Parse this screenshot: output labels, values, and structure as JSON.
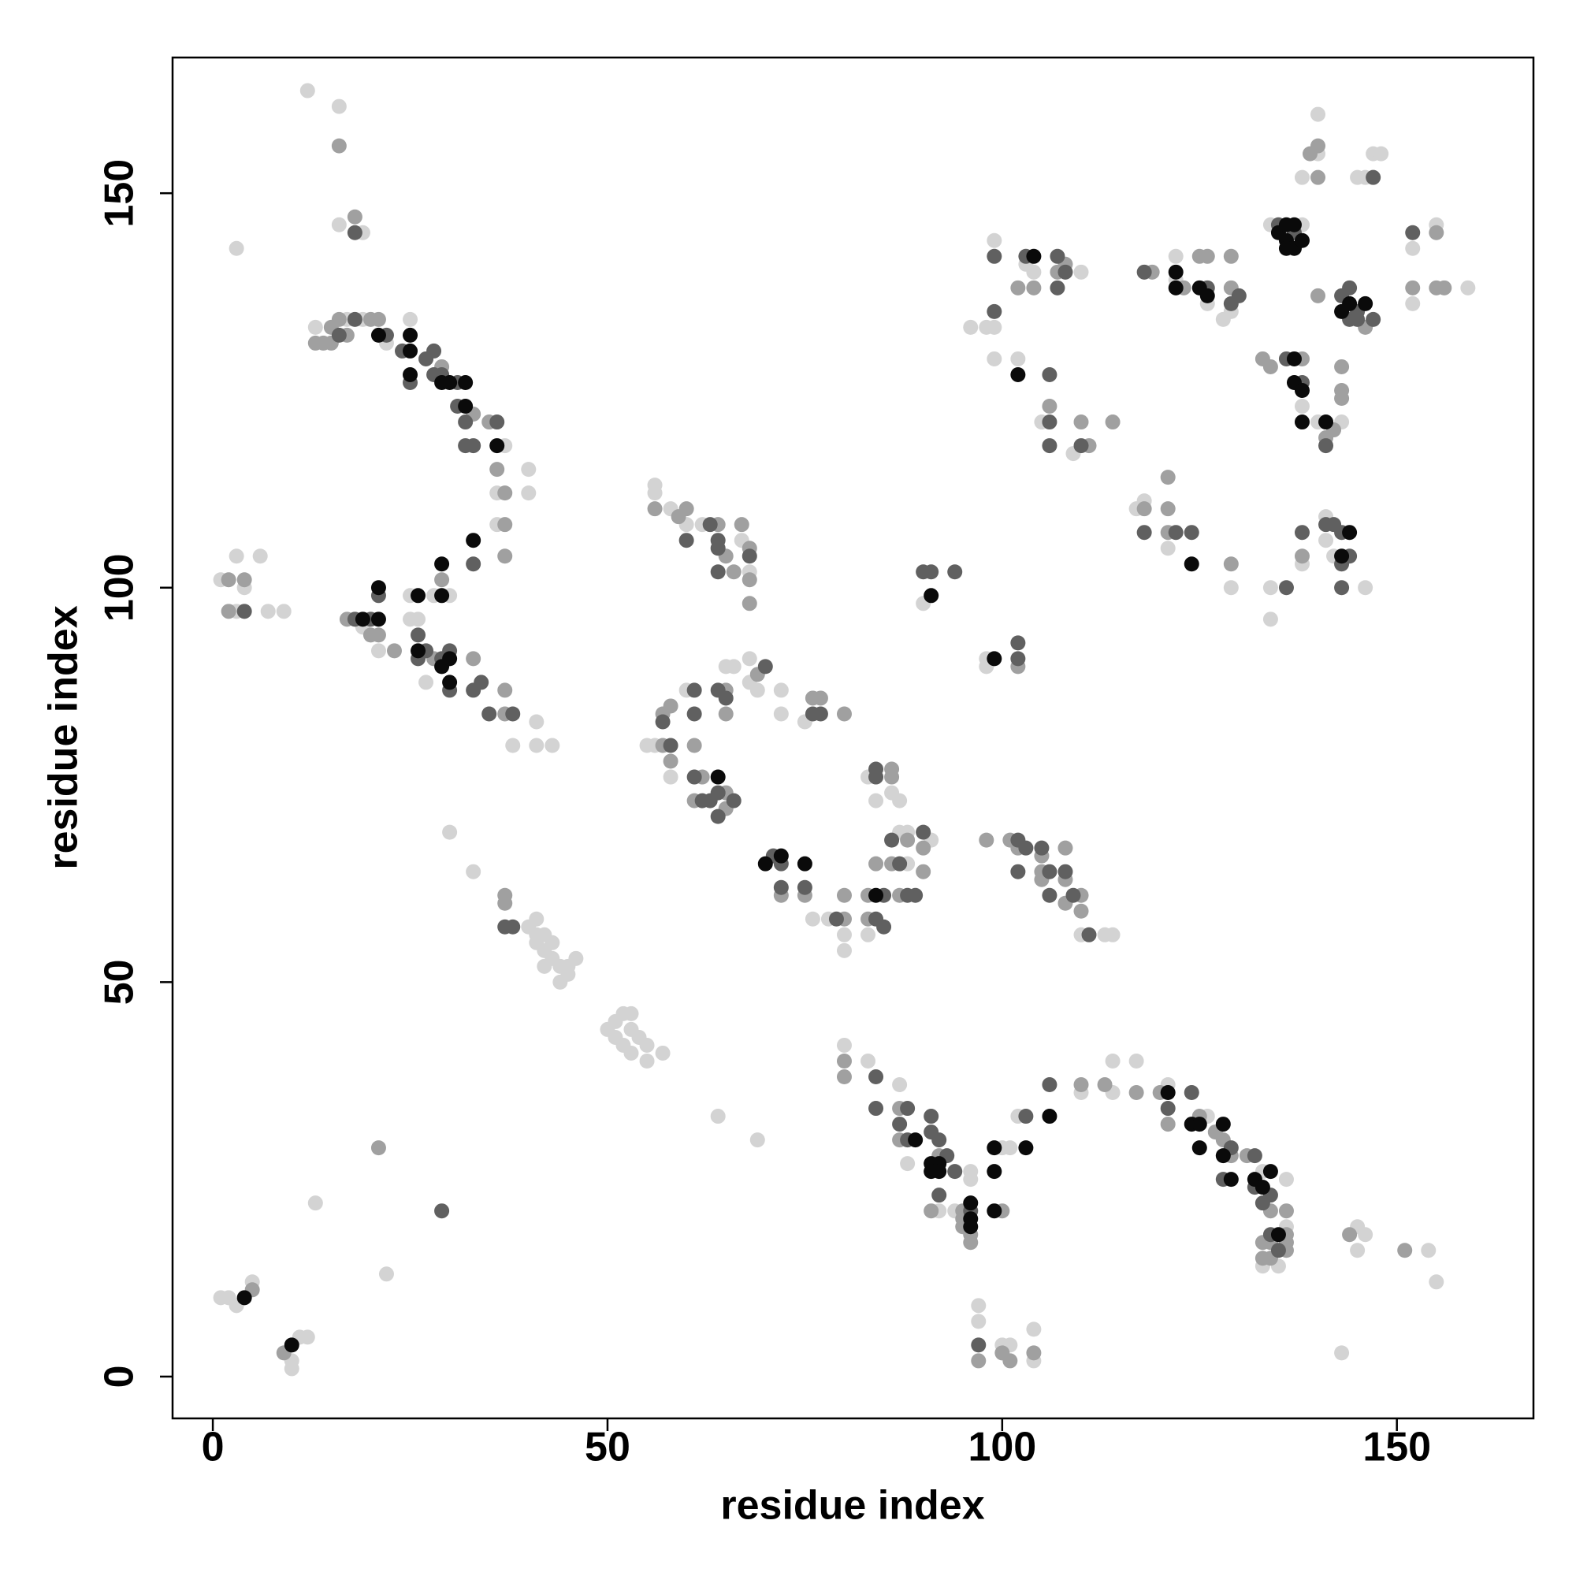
{
  "chart_data": {
    "type": "scatter",
    "xlabel": "residue index",
    "ylabel": "residue index",
    "xlim": [
      -5.1,
      167.3
    ],
    "ylim": [
      -5.3,
      167.2
    ],
    "xticks": [
      0,
      50,
      100,
      150
    ],
    "yticks": [
      0,
      50,
      100,
      150
    ],
    "grid": false,
    "series": [
      {
        "color": "#d3d3d3",
        "x": [
          1,
          2,
          3,
          5,
          10,
          11,
          12,
          10,
          13,
          22,
          3,
          12,
          16,
          16,
          19,
          1,
          3,
          3,
          4,
          6,
          7,
          9,
          13,
          17,
          19,
          22,
          25,
          37,
          36,
          36,
          40,
          40,
          30,
          28,
          25,
          19,
          21,
          25,
          26,
          27,
          38,
          41,
          41,
          43,
          30,
          33,
          40,
          41,
          41,
          41,
          42,
          42,
          43,
          44,
          44,
          45,
          46,
          45,
          43,
          42,
          50,
          51,
          51,
          52,
          53,
          53,
          52,
          53,
          54,
          55,
          55,
          57,
          64,
          69,
          56,
          56,
          58,
          60,
          62,
          67,
          68,
          65,
          66,
          60,
          55,
          56,
          58,
          68,
          68,
          69,
          72,
          75,
          72,
          76,
          78,
          80,
          80,
          83,
          83,
          86,
          84,
          87,
          87,
          88,
          88,
          91,
          90,
          98,
          98,
          110,
          113,
          114,
          80,
          83,
          87,
          88,
          92,
          94,
          96,
          96,
          100,
          101,
          102,
          110,
          114,
          114,
          117,
          121,
          126,
          133,
          133,
          135,
          136,
          136,
          145,
          145,
          146,
          154,
          155,
          97,
          97,
          100,
          101,
          104,
          104,
          143,
          99,
          98,
          99,
          96,
          99,
          102,
          103,
          104,
          110,
          105,
          109,
          122,
          122,
          126,
          128,
          129,
          117,
          118,
          121,
          129,
          134,
          138,
          138,
          140,
          140,
          145,
          146,
          147,
          148,
          152,
          152,
          155,
          159,
          138,
          140,
          143,
          134,
          134,
          138,
          141,
          141,
          142,
          146
        ],
        "y": [
          10,
          10,
          9,
          12,
          1,
          5,
          5,
          2,
          22,
          13,
          143,
          163,
          161,
          146,
          145,
          101,
          104,
          97,
          100,
          104,
          97,
          97,
          133,
          134,
          134,
          131,
          134,
          118,
          112,
          108,
          115,
          112,
          99,
          99,
          99,
          95,
          92,
          96,
          96,
          88,
          80,
          83,
          80,
          80,
          69,
          64,
          57,
          58,
          56,
          55,
          56,
          54,
          53,
          52,
          50,
          52,
          53,
          51,
          55,
          52,
          44,
          45,
          43,
          46,
          46,
          44,
          42,
          41,
          43,
          42,
          40,
          41,
          33,
          30,
          113,
          112,
          110,
          108,
          108,
          106,
          102,
          90,
          90,
          87,
          80,
          80,
          76,
          91,
          88,
          87,
          87,
          83,
          84,
          58,
          58,
          56,
          54,
          56,
          76,
          74,
          73,
          73,
          69,
          69,
          65,
          68,
          98,
          91,
          90,
          56,
          56,
          56,
          42,
          40,
          37,
          27,
          21,
          21,
          26,
          25,
          29,
          29,
          33,
          36,
          36,
          40,
          40,
          37,
          33,
          26,
          14,
          14,
          19,
          25,
          19,
          16,
          18,
          16,
          12,
          9,
          7,
          4,
          4,
          6,
          2,
          3,
          144,
          133,
          133,
          133,
          129,
          129,
          141,
          140,
          140,
          121,
          117,
          142,
          139,
          136,
          134,
          135,
          110,
          111,
          105,
          100,
          146,
          146,
          152,
          160,
          155,
          152,
          152,
          155,
          155,
          143,
          136,
          146,
          138,
          123,
          121,
          121,
          100,
          96,
          103,
          109,
          106,
          104,
          100
        ]
      },
      {
        "color": "#a0a0a0",
        "x": [
          5,
          9,
          21,
          16,
          18,
          2,
          2,
          4,
          13,
          14,
          15,
          15,
          16,
          17,
          20,
          21,
          29,
          33,
          35,
          36,
          37,
          37,
          37,
          29,
          17,
          20,
          21,
          23,
          28,
          33,
          37,
          37,
          37,
          37,
          56,
          59,
          60,
          64,
          65,
          66,
          67,
          68,
          68,
          68,
          69,
          65,
          65,
          58,
          57,
          57,
          58,
          61,
          62,
          61,
          65,
          65,
          76,
          77,
          80,
          72,
          75,
          80,
          80,
          83,
          83,
          86,
          86,
          88,
          86,
          87,
          84,
          90,
          90,
          102,
          98,
          101,
          102,
          105,
          105,
          105,
          108,
          108,
          108,
          110,
          110,
          80,
          80,
          87,
          87,
          92,
          91,
          95,
          95,
          95,
          96,
          96,
          100,
          110,
          113,
          117,
          120,
          121,
          125,
          127,
          128,
          129,
          131,
          134,
          134,
          133,
          133,
          134,
          136,
          136,
          136,
          136,
          144,
          151,
          97,
          100,
          101,
          104,
          102,
          104,
          108,
          107,
          106,
          110,
          111,
          114,
          119,
          123,
          125,
          126,
          129,
          129,
          118,
          121,
          121,
          121,
          129,
          139,
          140,
          140,
          152,
          155,
          155,
          156,
          140,
          146,
          133,
          134,
          138,
          141,
          142,
          143,
          143,
          143,
          138
        ],
        "y": [
          11,
          3,
          29,
          156,
          147,
          101,
          97,
          101,
          131,
          131,
          131,
          133,
          134,
          132,
          134,
          134,
          128,
          122,
          121,
          115,
          112,
          108,
          104,
          101,
          96,
          94,
          94,
          92,
          91,
          91,
          87,
          84,
          61,
          60,
          110,
          109,
          110,
          108,
          104,
          102,
          108,
          105,
          101,
          98,
          89,
          87,
          84,
          85,
          84,
          80,
          78,
          80,
          76,
          73,
          74,
          72,
          86,
          86,
          84,
          61,
          61,
          61,
          58,
          58,
          61,
          77,
          76,
          68,
          65,
          61,
          65,
          67,
          64,
          90,
          68,
          68,
          67,
          66,
          64,
          63,
          63,
          67,
          60,
          61,
          59,
          40,
          38,
          34,
          30,
          28,
          21,
          21,
          20,
          19,
          18,
          17,
          21,
          37,
          37,
          36,
          36,
          32,
          33,
          31,
          30,
          28,
          28,
          21,
          17,
          17,
          15,
          15,
          21,
          17,
          18,
          16,
          18,
          16,
          2,
          3,
          2,
          3,
          138,
          138,
          141,
          140,
          123,
          121,
          118,
          121,
          140,
          138,
          142,
          142,
          142,
          138,
          110,
          107,
          114,
          110,
          103,
          155,
          156,
          152,
          138,
          145,
          138,
          138,
          137,
          133,
          129,
          128,
          129,
          119,
          120,
          124,
          125,
          128,
          104
        ]
      },
      {
        "color": "#606060",
        "x": [
          29,
          18,
          4,
          16,
          18,
          22,
          24,
          25,
          27,
          28,
          28,
          29,
          31,
          31,
          32,
          32,
          33,
          36,
          33,
          21,
          20,
          18,
          26,
          26,
          27,
          29,
          30,
          30,
          33,
          34,
          35,
          38,
          37,
          38,
          60,
          63,
          64,
          64,
          64,
          68,
          61,
          61,
          64,
          65,
          57,
          58,
          61,
          62,
          63,
          64,
          64,
          66,
          70,
          76,
          77,
          71,
          72,
          72,
          75,
          79,
          84,
          85,
          85,
          84,
          84,
          86,
          87,
          88,
          89,
          90,
          90,
          91,
          94,
          102,
          102,
          102,
          103,
          102,
          105,
          106,
          106,
          108,
          109,
          111,
          84,
          84,
          88,
          87,
          88,
          91,
          91,
          92,
          93,
          94,
          92,
          96,
          97,
          103,
          106,
          121,
          124,
          128,
          129,
          132,
          132,
          134,
          133,
          134,
          135,
          99,
          99,
          103,
          107,
          108,
          107,
          106,
          106,
          106,
          110,
          118,
          126,
          129,
          130,
          118,
          122,
          124,
          135,
          137,
          147,
          152,
          143,
          144,
          145,
          145,
          147,
          144,
          136,
          138,
          141,
          136,
          138,
          141,
          142,
          143,
          143,
          143,
          144
        ],
        "y": [
          21,
          145,
          97,
          132,
          134,
          132,
          130,
          126,
          129,
          130,
          127,
          127,
          126,
          123,
          121,
          118,
          118,
          121,
          103,
          99,
          96,
          96,
          94,
          91,
          92,
          91,
          92,
          87,
          87,
          88,
          84,
          84,
          57,
          57,
          106,
          108,
          106,
          105,
          102,
          104,
          87,
          84,
          87,
          86,
          83,
          80,
          76,
          73,
          73,
          74,
          71,
          73,
          90,
          84,
          84,
          66,
          65,
          62,
          62,
          58,
          58,
          61,
          57,
          77,
          76,
          68,
          65,
          61,
          61,
          69,
          102,
          102,
          102,
          93,
          91,
          68,
          67,
          64,
          67,
          64,
          61,
          64,
          61,
          56,
          38,
          34,
          34,
          32,
          30,
          33,
          31,
          30,
          28,
          26,
          23,
          21,
          4,
          33,
          37,
          34,
          36,
          25,
          29,
          28,
          24,
          23,
          22,
          18,
          16,
          142,
          135,
          142,
          142,
          140,
          138,
          127,
          121,
          118,
          118,
          140,
          138,
          136,
          137,
          107,
          107,
          107,
          146,
          145,
          152,
          145,
          137,
          134,
          135,
          134,
          134,
          138,
          129,
          126,
          118,
          100,
          107,
          108,
          108,
          107,
          103,
          100,
          104
        ]
      },
      {
        "color": "#0a0a0a",
        "x": [
          4,
          10,
          21,
          25,
          25,
          25,
          29,
          30,
          32,
          32,
          36,
          33,
          29,
          29,
          26,
          21,
          19,
          21,
          26,
          29,
          30,
          30,
          64,
          70,
          72,
          75,
          84,
          91,
          99,
          89,
          91,
          92,
          91,
          92,
          96,
          96,
          96,
          99,
          99,
          99,
          103,
          106,
          121,
          124,
          125,
          125,
          128,
          128,
          129,
          132,
          133,
          134,
          135,
          102,
          104,
          122,
          122,
          125,
          126,
          124,
          135,
          136,
          136,
          137,
          137,
          138,
          136,
          143,
          144,
          146,
          137,
          137,
          138,
          138,
          141,
          143,
          144
        ],
        "y": [
          10,
          4,
          132,
          130,
          132,
          127,
          126,
          126,
          126,
          123,
          118,
          106,
          103,
          99,
          99,
          100,
          96,
          96,
          92,
          90,
          91,
          88,
          76,
          65,
          66,
          65,
          61,
          99,
          91,
          30,
          27,
          27,
          26,
          26,
          22,
          20,
          19,
          26,
          21,
          29,
          29,
          33,
          36,
          32,
          32,
          29,
          32,
          28,
          25,
          25,
          24,
          26,
          18,
          127,
          142,
          140,
          138,
          138,
          137,
          103,
          145,
          146,
          144,
          146,
          143,
          144,
          143,
          135,
          136,
          136,
          129,
          126,
          125,
          121,
          121,
          104,
          107
        ]
      }
    ]
  }
}
